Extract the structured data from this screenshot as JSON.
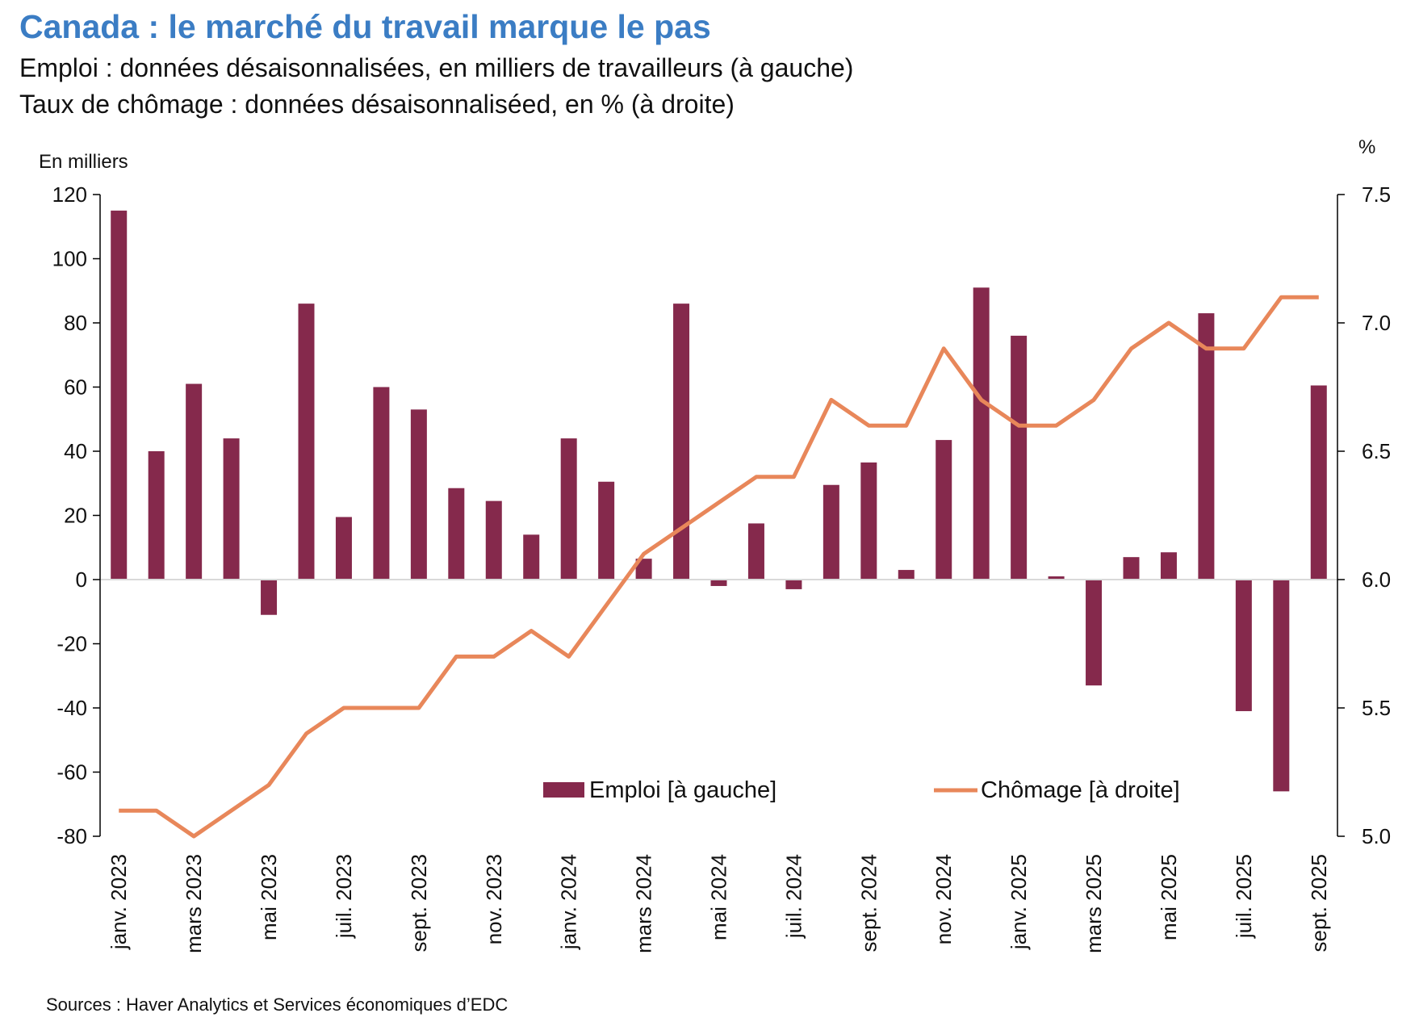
{
  "title": "Canada : le marché du travail marque le pas",
  "subtitle_1": "Emploi : données désaisonnalisées, en milliers de travailleurs (à gauche)",
  "subtitle_2": "Taux de chômage : données désaisonnaliséed, en % (à droite)",
  "source": "Sources : Haver Analytics et Services économiques d’EDC",
  "chart_data": {
    "type": "bar+line",
    "ylabel_left": "En milliers",
    "ylabel_right": "%",
    "ylim_left": [
      -80,
      120
    ],
    "yticks_left": [
      120,
      100,
      80,
      60,
      40,
      20,
      0,
      -20,
      -40,
      -60,
      -80
    ],
    "ylim_right": [
      5.0,
      7.5
    ],
    "yticks_right": [
      "7.5",
      "7.0",
      "6.5",
      "6.0",
      "5.5",
      "5.0"
    ],
    "grid": false,
    "legend_placement": "bottom-center",
    "categories": [
      "janv. 2023",
      "févr. 2023",
      "mars 2023",
      "avr. 2023",
      "mai 2023",
      "juin 2023",
      "juil. 2023",
      "août 2023",
      "sept. 2023",
      "oct. 2023",
      "nov. 2023",
      "déc. 2023",
      "janv. 2024",
      "févr. 2024",
      "mars 2024",
      "avr. 2024",
      "mai 2024",
      "juin 2024",
      "juil. 2024",
      "août 2024",
      "sept. 2024",
      "oct. 2024",
      "nov. 2024",
      "déc. 2024",
      "janv. 2025",
      "févr. 2025",
      "mars 2025",
      "avr. 2025",
      "mai 2025",
      "juin 2025",
      "juil. 2025",
      "août 2025",
      "sept. 2025"
    ],
    "xtick_labels": [
      "janv. 2023",
      "mars 2023",
      "mai 2023",
      "juil. 2023",
      "sept. 2023",
      "nov. 2023",
      "janv. 2024",
      "mars 2024",
      "mai 2024",
      "juil. 2024",
      "sept. 2024",
      "nov. 2024",
      "janv. 2025",
      "mars 2025",
      "mai 2025",
      "juil. 2025",
      "sept. 2025"
    ],
    "series": [
      {
        "name": "Emploi [à gauche]",
        "type": "bar",
        "axis": "left",
        "color": "#85294c",
        "values": [
          115,
          40,
          61,
          44,
          -11,
          86,
          19.5,
          60,
          53,
          28.5,
          24.5,
          14,
          44,
          30.5,
          6.5,
          86,
          -2,
          17.5,
          -3,
          29.5,
          36.5,
          3,
          43.5,
          91,
          76,
          1,
          -33,
          7,
          8.5,
          83,
          -41,
          -66,
          60.5
        ]
      },
      {
        "name": "Chômage [à droite]",
        "type": "line",
        "axis": "right",
        "color": "#e8875a",
        "values": [
          5.1,
          5.1,
          5.0,
          5.1,
          5.2,
          5.4,
          5.5,
          5.5,
          5.5,
          5.7,
          5.7,
          5.8,
          5.7,
          5.9,
          6.1,
          6.2,
          6.3,
          6.4,
          6.4,
          6.7,
          6.6,
          6.6,
          6.9,
          6.7,
          6.6,
          6.6,
          6.7,
          6.9,
          7.0,
          6.9,
          6.9,
          7.1,
          7.1
        ]
      }
    ]
  }
}
